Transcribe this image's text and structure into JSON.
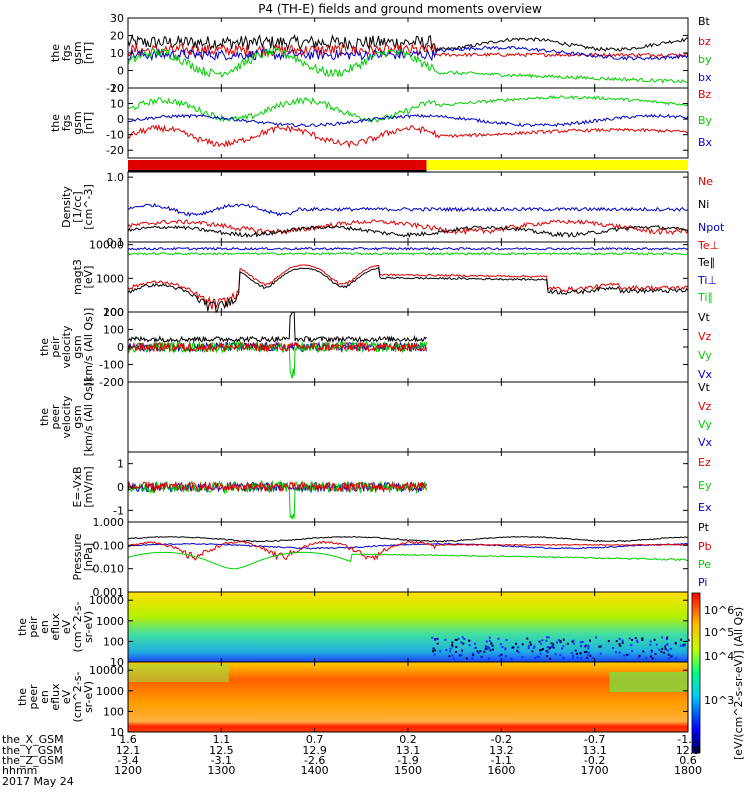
{
  "title": "P4 (TH-E) fields and ground moments overview",
  "colors": {
    "black": "#000000",
    "red": "#e00000",
    "green": "#00d000",
    "blue": "#0000c8",
    "yellow": "#ffff00"
  },
  "footer": {
    "rows": [
      {
        "label": "the_X_GSM",
        "values": [
          "1.6",
          "1.1",
          "0.7",
          "0.2",
          "-0.2",
          "-0.7",
          "-1.1"
        ]
      },
      {
        "label": "the_Y_GSM",
        "values": [
          "12.1",
          "12.5",
          "12.9",
          "13.1",
          "13.2",
          "13.1",
          "12.9"
        ]
      },
      {
        "label": "the_Z_GSM",
        "values": [
          "-3.4",
          "-3.1",
          "-2.6",
          "-1.9",
          "-1.1",
          "-0.2",
          "0.6"
        ]
      },
      {
        "label": "hhmm",
        "values": [
          "1200",
          "1300",
          "1400",
          "1500",
          "1600",
          "1700",
          "1800"
        ]
      }
    ],
    "date": "2017 May 24"
  },
  "colorbar": {
    "ticks": [
      "10^6",
      "10^5",
      "10^4",
      "10^3"
    ],
    "label": "[eV/(cm^2-s-sr-eV)] (All Qs)"
  },
  "chart_data": [
    {
      "type": "line",
      "ylabel": "the fgs gsm [nT]",
      "ylim": [
        -10,
        30
      ],
      "ticks": [
        "30",
        "20",
        "10",
        "0",
        "-10"
      ],
      "series": [
        {
          "name": "Bt",
          "color": "black",
          "approx_level": 13
        },
        {
          "name": "bz",
          "color": "red",
          "approx_level": 9
        },
        {
          "name": "by",
          "color": "green",
          "approx_level": -4
        },
        {
          "name": "bx",
          "color": "blue",
          "approx_level": 5
        }
      ]
    },
    {
      "type": "line",
      "ylabel": "the fgs gsm [nT]",
      "ylim": [
        -25,
        20
      ],
      "ticks": [
        "20",
        "10",
        "0",
        "-10",
        "-20"
      ],
      "series": [
        {
          "name": "Bz",
          "color": "red",
          "approx_level": -8
        },
        {
          "name": "By",
          "color": "green",
          "approx_level": 10
        },
        {
          "name": "Bx",
          "color": "blue",
          "approx_level": -1
        }
      ]
    },
    {
      "type": "bar",
      "description": "mode bar",
      "segments": [
        {
          "color": "red",
          "from": "1200",
          "to": "1518"
        },
        {
          "color": "yellow",
          "from": "1518",
          "to": "1800"
        }
      ]
    },
    {
      "type": "line",
      "ylabel": "Density [1/cc] [cm^-3]",
      "scale": "log",
      "ticks": [
        "1.0",
        "0.1"
      ],
      "series": [
        {
          "name": "Ne",
          "color": "red",
          "approx_level": 0.15
        },
        {
          "name": "Ni",
          "color": "black",
          "approx_level": 0.13
        },
        {
          "name": "Npot",
          "color": "blue",
          "approx_level": 0.28
        }
      ]
    },
    {
      "type": "line",
      "ylabel": "magt3 [eV]",
      "scale": "log",
      "ticks": [
        "10000",
        "1000",
        "100"
      ],
      "series": [
        {
          "name": "Te⊥",
          "color": "red"
        },
        {
          "name": "Te∥",
          "color": "black"
        },
        {
          "name": "Ti⊥",
          "color": "blue",
          "approx_level": 7000
        },
        {
          "name": "Ti∥",
          "color": "green",
          "approx_level": 5000
        }
      ]
    },
    {
      "type": "line",
      "ylabel": "the peir velocity gsm [km/s (All Qs)]",
      "ylim": [
        -200,
        200
      ],
      "ticks": [
        "200",
        "100",
        "0",
        "-100",
        "-200"
      ],
      "series": [
        {
          "name": "Vt",
          "color": "black"
        },
        {
          "name": "Vz",
          "color": "red"
        },
        {
          "name": "Vy",
          "color": "green"
        },
        {
          "name": "Vx",
          "color": "blue"
        }
      ]
    },
    {
      "type": "line",
      "ylabel": "the peer velocity gsm [km/s (All Qs)]",
      "ticks": [],
      "series": [
        {
          "name": "Vt",
          "color": "black"
        },
        {
          "name": "Vz",
          "color": "red"
        },
        {
          "name": "Vy",
          "color": "green"
        },
        {
          "name": "Vx",
          "color": "blue"
        }
      ]
    },
    {
      "type": "line",
      "ylabel": "E=-VxB [mV/m]",
      "ylim": [
        -1.5,
        1.5
      ],
      "ticks": [
        "1",
        "0",
        "-1"
      ],
      "series": [
        {
          "name": "Ez",
          "color": "red"
        },
        {
          "name": "Ey",
          "color": "green"
        },
        {
          "name": "Ex",
          "color": "blue"
        }
      ]
    },
    {
      "type": "line",
      "ylabel": "Pressure [nPa]",
      "scale": "log",
      "ticks": [
        "1.000",
        "0.100",
        "0.010",
        "0.001"
      ],
      "series": [
        {
          "name": "Pt",
          "color": "black",
          "approx_level": 0.18
        },
        {
          "name": "Pb",
          "color": "red",
          "approx_level": 0.1
        },
        {
          "name": "Pe",
          "color": "green",
          "approx_level": 0.015
        },
        {
          "name": "Pi",
          "color": "blue",
          "approx_level": 0.1
        }
      ]
    },
    {
      "type": "heatmap",
      "ylabel": "the peir en eflux eV (cm^2-s-sr-eV)",
      "scale": "log",
      "ticks": [
        "10000",
        "1000",
        "100",
        "10"
      ]
    },
    {
      "type": "heatmap",
      "ylabel": "the peer en eflux eV (cm^2-s-sr-eV)",
      "scale": "log",
      "ticks": [
        "10000",
        "1000",
        "100",
        "10"
      ]
    }
  ]
}
